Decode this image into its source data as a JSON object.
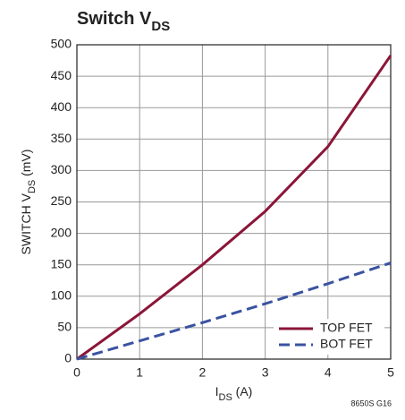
{
  "chart_data": {
    "type": "line",
    "title": [
      {
        "text": "Switch V"
      },
      {
        "text": "DS",
        "sub": true
      }
    ],
    "xlabel": [
      {
        "text": "I"
      },
      {
        "text": "DS",
        "sub": true
      },
      {
        "text": " (A)"
      }
    ],
    "ylabel": [
      {
        "text": "SWITCH V"
      },
      {
        "text": "DS",
        "sub": true
      },
      {
        "text": " (mV)"
      }
    ],
    "annotation": "8650S G16",
    "x": [
      0,
      1,
      2,
      3,
      4,
      5
    ],
    "series": [
      {
        "name": "TOP FET",
        "color": "#8b1538",
        "dashed": false,
        "values": [
          0,
          72,
          150,
          235,
          338,
          483
        ]
      },
      {
        "name": "BOT FET",
        "color": "#3a52a0",
        "dashed": true,
        "values": [
          0,
          29,
          58,
          88,
          120,
          153
        ]
      }
    ],
    "xlim": [
      0,
      5
    ],
    "xticks": [
      0,
      1,
      2,
      3,
      4,
      5
    ],
    "ylim": [
      0,
      500
    ],
    "yticks": [
      0,
      50,
      100,
      150,
      200,
      250,
      300,
      350,
      400,
      450,
      500
    ],
    "grid": true,
    "legend": "lower right"
  }
}
